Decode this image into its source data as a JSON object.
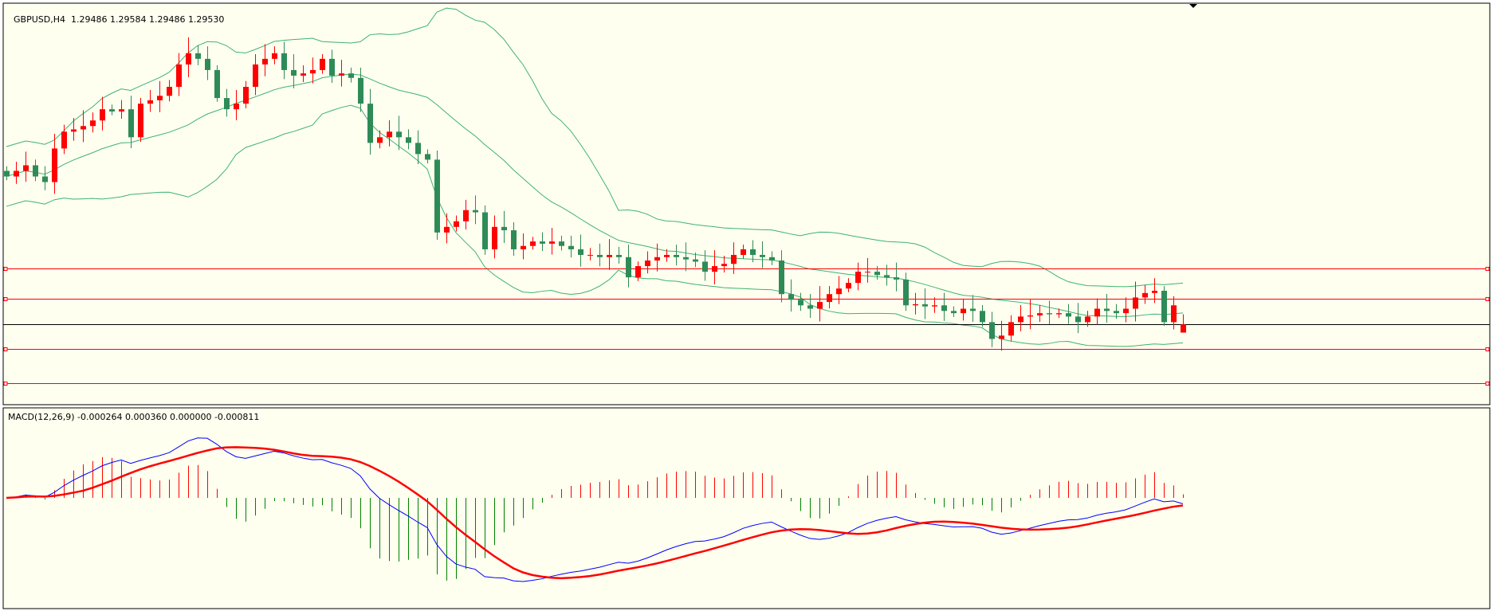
{
  "main_pane": {
    "symbol_label": "GBPUSD,H4",
    "ohlc_label": "1.29486 1.29584 1.29486 1.29530"
  },
  "macd_pane": {
    "label": "MACD(12,26,9) -0.000264 0.000360 0.000000 -0.000811"
  },
  "colors": {
    "background": "#fffff0",
    "bull": "#ff0000",
    "bear": "#2e8b57",
    "bands": "#3cb371",
    "hline": "#ff0000",
    "bid_line": "#000000",
    "macd_main": "#0000ff",
    "macd_signal": "#ff0000",
    "hist_pos": "#ff0000",
    "hist_neg": "#008000"
  },
  "chart_data": {
    "type": "candlestick",
    "symbol": "GBPUSD",
    "timeframe": "H4",
    "last_bar": {
      "open": 1.29486,
      "high": 1.29584,
      "low": 1.29486,
      "close": 1.2953
    },
    "closes": [
      1.30322,
      1.30352,
      1.30382,
      1.30322,
      1.30292,
      1.30472,
      1.30562,
      1.30574,
      1.30592,
      1.30622,
      1.30682,
      1.3067,
      1.30682,
      1.30532,
      1.30712,
      1.3073,
      1.30754,
      1.30802,
      1.30922,
      1.30982,
      1.30952,
      1.30892,
      1.30742,
      1.30682,
      1.30712,
      1.30802,
      1.30922,
      1.30952,
      1.30982,
      1.30892,
      1.30862,
      1.30874,
      1.30892,
      1.30952,
      1.30862,
      1.30874,
      1.3085,
      1.30712,
      1.30502,
      1.30532,
      1.30562,
      1.30532,
      1.30502,
      1.30442,
      1.30412,
      1.30022,
      1.30052,
      1.30082,
      1.30142,
      1.3013,
      1.29932,
      1.30052,
      1.30034,
      1.29932,
      1.2995,
      1.29974,
      1.29962,
      1.29974,
      1.2995,
      1.29932,
      1.29902,
      1.29902,
      1.2989,
      1.29902,
      1.2989,
      1.29782,
      1.29842,
      1.29872,
      1.2989,
      1.29902,
      1.2989,
      1.29878,
      1.29866,
      1.29812,
      1.29842,
      1.29854,
      1.29902,
      1.29932,
      1.29902,
      1.2989,
      1.29872,
      1.29692,
      1.29662,
      1.29632,
      1.29614,
      1.2965,
      1.29692,
      1.29722,
      1.29752,
      1.29812,
      1.29812,
      1.29794,
      1.29782,
      1.2977,
      1.29632,
      1.29638,
      1.29626,
      1.29632,
      1.29602,
      1.2959,
      1.29614,
      1.29602,
      1.29542,
      1.29452,
      1.2947,
      1.29542,
      1.29572,
      1.29578,
      1.2959,
      1.29584,
      1.2959,
      1.29572,
      1.29542,
      1.29572,
      1.29614,
      1.29602,
      1.2959,
      1.29614,
      1.29674,
      1.29698,
      1.2971,
      1.29542,
      1.29632,
      1.2953
    ],
    "bid": 1.2953,
    "horizontal_levels": [
      1.29831,
      1.29666,
      1.29399,
      1.29214
    ],
    "indicators": [
      "Bollinger Bands(20,2)",
      "MACD(12,26,9)"
    ],
    "ylim": [
      1.291,
      1.3125
    ]
  }
}
